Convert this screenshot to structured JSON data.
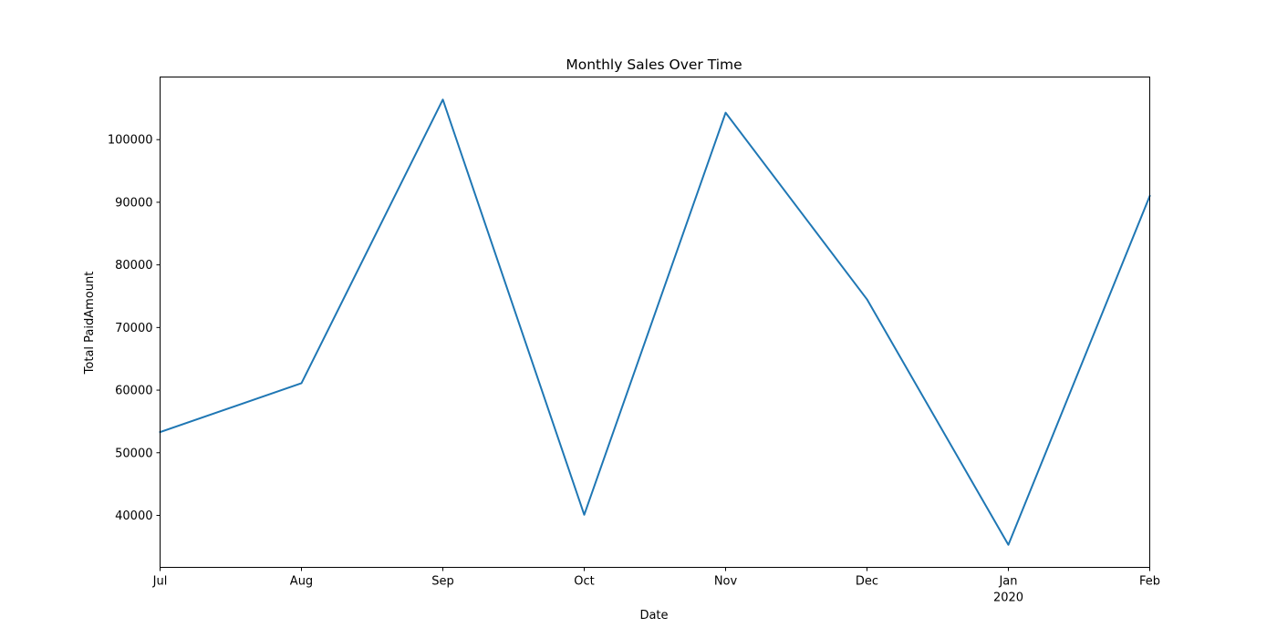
{
  "chart_data": {
    "type": "line",
    "title": "Monthly Sales Over Time",
    "xlabel": "Date",
    "ylabel": "Total PaidAmount",
    "x": [
      "2019-07",
      "2019-08",
      "2019-09",
      "2019-10",
      "2019-11",
      "2019-12",
      "2020-01",
      "2020-02"
    ],
    "x_tick_labels": [
      "Jul",
      "Aug",
      "Sep",
      "Oct",
      "Nov",
      "Dec",
      "Jan",
      "Feb"
    ],
    "x_year_label": "2020",
    "series": [
      {
        "values": [
          53300,
          61100,
          106400,
          40100,
          104300,
          74500,
          35300,
          91000
        ]
      }
    ],
    "yticks": [
      40000,
      50000,
      60000,
      70000,
      80000,
      90000,
      100000
    ],
    "ylim": [
      31700,
      110000
    ],
    "grid": false,
    "line_color": "#1f77b4"
  }
}
